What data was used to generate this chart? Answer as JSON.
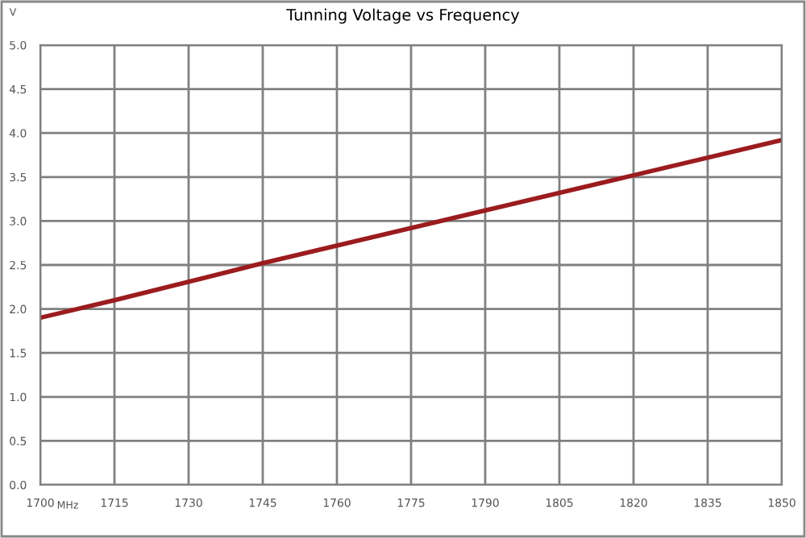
{
  "chart_data": {
    "type": "line",
    "title": "Tunning Voltage vs Frequency",
    "xlabel": "MHz",
    "ylabel": "V",
    "x": [
      1700,
      1715,
      1745,
      1790,
      1820,
      1850
    ],
    "series": [
      {
        "color": "#9b1c1f",
        "values": [
          1.9,
          2.1,
          2.52,
          3.12,
          3.52,
          3.92
        ]
      }
    ],
    "xlim": [
      1700,
      1850
    ],
    "xticks": [
      1700,
      1715,
      1730,
      1745,
      1760,
      1775,
      1790,
      1805,
      1820,
      1835,
      1850
    ],
    "ylim": [
      0,
      5
    ],
    "yticks": [
      {
        "value": 0,
        "label": "0.0"
      },
      {
        "value": 0.5,
        "label": "0.5"
      },
      {
        "value": 1,
        "label": "1.0"
      },
      {
        "value": 1.5,
        "label": "1.5"
      },
      {
        "value": 2,
        "label": "2.0"
      },
      {
        "value": 2.5,
        "label": "2.5"
      },
      {
        "value": 3,
        "label": "3.0"
      },
      {
        "value": 3.5,
        "label": "3.5"
      },
      {
        "value": 4,
        "label": "4.0"
      },
      {
        "value": 4.5,
        "label": "4.5"
      },
      {
        "value": 5,
        "label": "5.0"
      }
    ],
    "grid": true,
    "legend": false,
    "marker": "none",
    "line_style": "solid"
  }
}
